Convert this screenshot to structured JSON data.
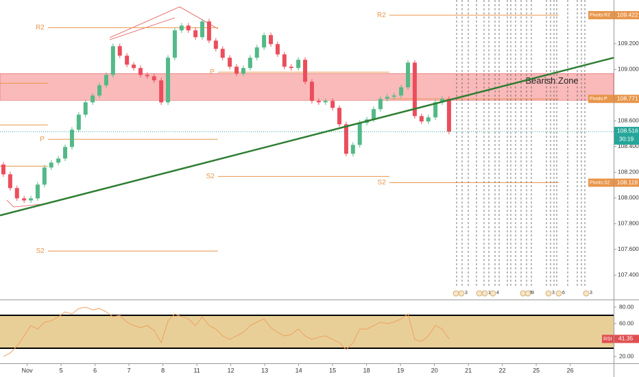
{
  "chart_data": [
    {
      "type": "candlestick",
      "x": [
        -0.7,
        -0.5,
        -0.3,
        -0.09,
        0.11,
        0.31,
        0.51,
        0.71,
        0.92,
        1.12,
        1.32,
        1.52,
        1.72,
        1.93,
        2.13,
        2.33,
        2.53,
        2.73,
        2.94,
        3.14,
        3.34,
        3.54,
        3.74,
        3.95,
        4.15,
        4.35,
        4.55,
        4.75,
        4.96,
        5.16,
        5.36,
        5.56,
        5.76,
        5.97,
        6.17,
        6.37,
        6.57,
        6.77,
        6.98,
        7.18,
        7.38,
        7.58,
        7.78,
        7.99,
        8.19,
        8.39,
        8.59,
        8.79,
        9.0,
        9.2,
        9.4,
        9.6,
        9.8,
        10.01,
        10.21,
        10.41,
        10.61,
        10.81,
        11.02,
        11.22,
        11.42,
        11.62,
        11.82,
        12.03,
        12.23,
        12.43
      ],
      "open": [
        108.26,
        108.184,
        108.077,
        107.997,
        107.981,
        107.997,
        108.104,
        108.237,
        108.275,
        108.307,
        108.397,
        108.531,
        108.648,
        108.744,
        108.797,
        108.877,
        108.957,
        109.181,
        109.107,
        109.037,
        109.011,
        108.957,
        108.947,
        108.915,
        108.744,
        109.091,
        109.304,
        109.341,
        109.304,
        109.251,
        109.373,
        109.224,
        109.16,
        109.091,
        109.021,
        108.968,
        109.011,
        109.091,
        109.171,
        109.267,
        109.197,
        109.117,
        109.021,
        109.011,
        109.075,
        108.904,
        108.755,
        108.744,
        108.755,
        108.701,
        108.573,
        108.344,
        108.413,
        108.584,
        108.611,
        108.691,
        108.771,
        108.787,
        108.797,
        108.861,
        109.053,
        108.637,
        108.595,
        108.627,
        108.744,
        108.771
      ],
      "high": [
        108.28,
        108.204,
        108.097,
        108.017,
        108.017,
        108.124,
        108.257,
        108.295,
        108.327,
        108.417,
        108.551,
        108.668,
        108.764,
        108.817,
        108.897,
        108.977,
        109.201,
        109.201,
        109.127,
        109.057,
        109.031,
        108.977,
        108.967,
        108.935,
        109.111,
        109.324,
        109.361,
        109.361,
        109.324,
        109.393,
        109.393,
        109.244,
        109.18,
        109.111,
        109.041,
        109.031,
        109.111,
        109.191,
        109.287,
        109.287,
        109.217,
        109.137,
        109.041,
        109.095,
        109.095,
        108.924,
        108.775,
        108.775,
        108.775,
        108.721,
        108.593,
        108.433,
        108.604,
        108.631,
        108.711,
        108.791,
        108.807,
        108.817,
        108.881,
        109.073,
        109.073,
        108.657,
        108.647,
        108.764,
        108.791,
        108.791
      ],
      "low": [
        108.164,
        108.057,
        107.977,
        107.961,
        107.961,
        107.977,
        108.084,
        108.217,
        108.255,
        108.287,
        108.377,
        108.511,
        108.628,
        108.724,
        108.777,
        108.857,
        108.937,
        109.087,
        109.017,
        108.991,
        108.937,
        108.927,
        108.895,
        108.724,
        108.724,
        109.071,
        109.284,
        109.284,
        109.231,
        109.231,
        109.204,
        109.14,
        109.071,
        109.001,
        108.948,
        108.948,
        108.991,
        109.071,
        109.151,
        109.177,
        109.097,
        109.001,
        108.991,
        108.991,
        108.884,
        108.735,
        108.724,
        108.724,
        108.681,
        108.553,
        108.324,
        108.324,
        108.393,
        108.564,
        108.591,
        108.671,
        108.751,
        108.767,
        108.777,
        108.841,
        108.617,
        108.575,
        108.575,
        108.607,
        108.724,
        108.496
      ],
      "close": [
        108.184,
        108.077,
        107.997,
        107.981,
        107.997,
        108.104,
        108.237,
        108.275,
        108.307,
        108.397,
        108.531,
        108.648,
        108.744,
        108.797,
        108.877,
        108.957,
        109.181,
        109.107,
        109.037,
        109.011,
        108.957,
        108.947,
        108.915,
        108.744,
        109.091,
        109.304,
        109.341,
        109.304,
        109.251,
        109.373,
        109.224,
        109.16,
        109.091,
        109.021,
        108.968,
        109.011,
        109.091,
        109.171,
        109.267,
        109.197,
        109.117,
        109.021,
        109.011,
        109.075,
        108.904,
        108.755,
        108.744,
        108.755,
        108.701,
        108.573,
        108.344,
        108.413,
        108.584,
        108.611,
        108.691,
        108.771,
        108.787,
        108.797,
        108.861,
        109.053,
        108.637,
        108.595,
        108.627,
        108.744,
        108.771,
        108.516
      ],
      "up_color": "#53b987",
      "down_color": "#eb4d5c",
      "xlim": [
        -0.8,
        17.28
      ],
      "xticks": [
        {
          "value": 0,
          "label": "Nov"
        },
        {
          "value": 1,
          "label": "5"
        },
        {
          "value": 2,
          "label": "6"
        },
        {
          "value": 3,
          "label": "7"
        },
        {
          "value": 4,
          "label": "8"
        },
        {
          "value": 5,
          "label": "11"
        },
        {
          "value": 6,
          "label": "12"
        },
        {
          "value": 7,
          "label": "13"
        },
        {
          "value": 8,
          "label": "14"
        },
        {
          "value": 9,
          "label": "15"
        },
        {
          "value": 10,
          "label": "18"
        },
        {
          "value": 11,
          "label": "19"
        },
        {
          "value": 12,
          "label": "20"
        },
        {
          "value": 13,
          "label": "21"
        },
        {
          "value": 14,
          "label": "22"
        },
        {
          "value": 15,
          "label": "25"
        },
        {
          "value": 16,
          "label": "26"
        }
      ],
      "ylim": [
        107.21,
        109.54
      ],
      "yticks": [
        {
          "value": 107.4,
          "label": "107.400"
        },
        {
          "value": 107.6,
          "label": "107.600"
        },
        {
          "value": 107.8,
          "label": "107.800"
        },
        {
          "value": 108.0,
          "label": "108.000"
        },
        {
          "value": 108.2,
          "label": "108.200"
        },
        {
          "value": 108.4,
          "label": "108.400"
        },
        {
          "value": 108.6,
          "label": "108.600"
        },
        {
          "value": 109.0,
          "label": "109.000"
        },
        {
          "value": 109.2,
          "label": "109.200"
        }
      ],
      "zone": {
        "label": "Bearish Zone",
        "top": 108.968,
        "bottom": 108.76,
        "color": "#f8a3a3"
      },
      "trendline": {
        "x": [
          -0.8,
          17.28
        ],
        "y": [
          107.864,
          109.091
        ],
        "color": "#2e7d32"
      },
      "pivot_color": "#e8954a",
      "pivots": [
        {
          "label": "R2",
          "value": 109.325,
          "x": [
            0.61,
            5.62
          ]
        },
        {
          "label": "P",
          "value": 108.456,
          "x": [
            0.61,
            5.62
          ]
        },
        {
          "label": "S2",
          "value": 107.587,
          "x": [
            0.61,
            5.62
          ]
        },
        {
          "value": 108.893,
          "x": [
            -0.8,
            0.61
          ]
        },
        {
          "value": 108.568,
          "x": [
            -0.8,
            0.61
          ]
        },
        {
          "value": 108.248,
          "x": [
            -0.8,
            0.61
          ]
        },
        {
          "label": "P",
          "value": 108.979,
          "x": [
            5.62,
            10.67
          ]
        },
        {
          "label": "S2",
          "value": 108.168,
          "x": [
            5.62,
            10.67
          ]
        },
        {
          "label": "R2",
          "value": 109.422,
          "x": [
            10.67,
            15.66
          ],
          "axis_label": "Pivots:R2"
        },
        {
          "value": 108.771,
          "x": [
            10.67,
            15.66
          ],
          "axis_label": "Pivots:P"
        },
        {
          "label": "S2",
          "value": 108.119,
          "x": [
            10.67,
            15.66
          ],
          "axis_label": "Pivots:S2"
        }
      ],
      "countdown": "30:19",
      "events": [
        "8",
        "3",
        "5",
        "12",
        "4",
        "33",
        "9",
        "3",
        "6",
        "3"
      ]
    },
    {
      "type": "line",
      "name": "RSI",
      "color": "#f0a060",
      "values": [
        20,
        24.2,
        32.5,
        45,
        57.5,
        53.3,
        61.7,
        63.3,
        68.3,
        74.2,
        71.7,
        78.3,
        80,
        76.7,
        78.3,
        74.2,
        68.3,
        70,
        61.7,
        57.5,
        55,
        57.5,
        51.7,
        36.7,
        63.3,
        71.7,
        68.3,
        65.8,
        57.5,
        68.3,
        57.5,
        53.3,
        45,
        40.8,
        45,
        49.2,
        57.5,
        61.7,
        65.8,
        55,
        49.2,
        45,
        46.7,
        53.3,
        45,
        40.8,
        43.3,
        45,
        40.8,
        36.7,
        28.3,
        36.7,
        53.3,
        53.3,
        57.5,
        61.7,
        60,
        61.7,
        65.8,
        71.7,
        40.8,
        38.3,
        45,
        57.5,
        53.3,
        41.35
      ],
      "ylim": [
        11.7,
        86.7
      ],
      "yticks": [
        {
          "value": 20,
          "label": "20.00"
        },
        {
          "value": 60,
          "label": "60.00"
        },
        {
          "value": 80,
          "label": "80.00"
        }
      ],
      "bands": [
        30,
        70
      ],
      "band_color": "#e8cf98"
    }
  ]
}
